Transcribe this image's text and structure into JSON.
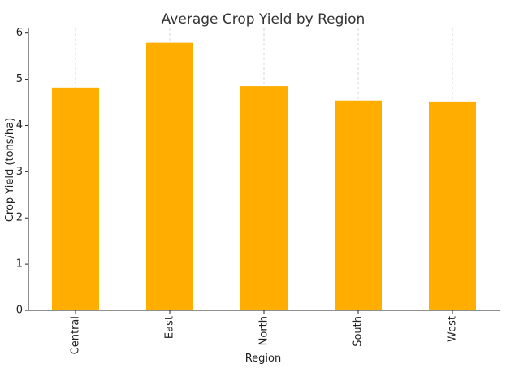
{
  "chart_data": {
    "type": "bar",
    "title": "Average Crop Yield by Region",
    "xlabel": "Region",
    "ylabel": "Crop Yield (tons/ha)",
    "categories": [
      "Central",
      "East",
      "North",
      "South",
      "West"
    ],
    "values": [
      4.82,
      5.79,
      4.85,
      4.54,
      4.52
    ],
    "ylim": [
      0,
      6.1
    ],
    "yticks": [
      0,
      1,
      2,
      3,
      4,
      5,
      6
    ],
    "grid": "vertical-dashed",
    "legend": "none",
    "colors": {
      "bar": "#FFAE00",
      "axis": "#222222",
      "grid": "#cccccc",
      "title": "#333333"
    }
  }
}
